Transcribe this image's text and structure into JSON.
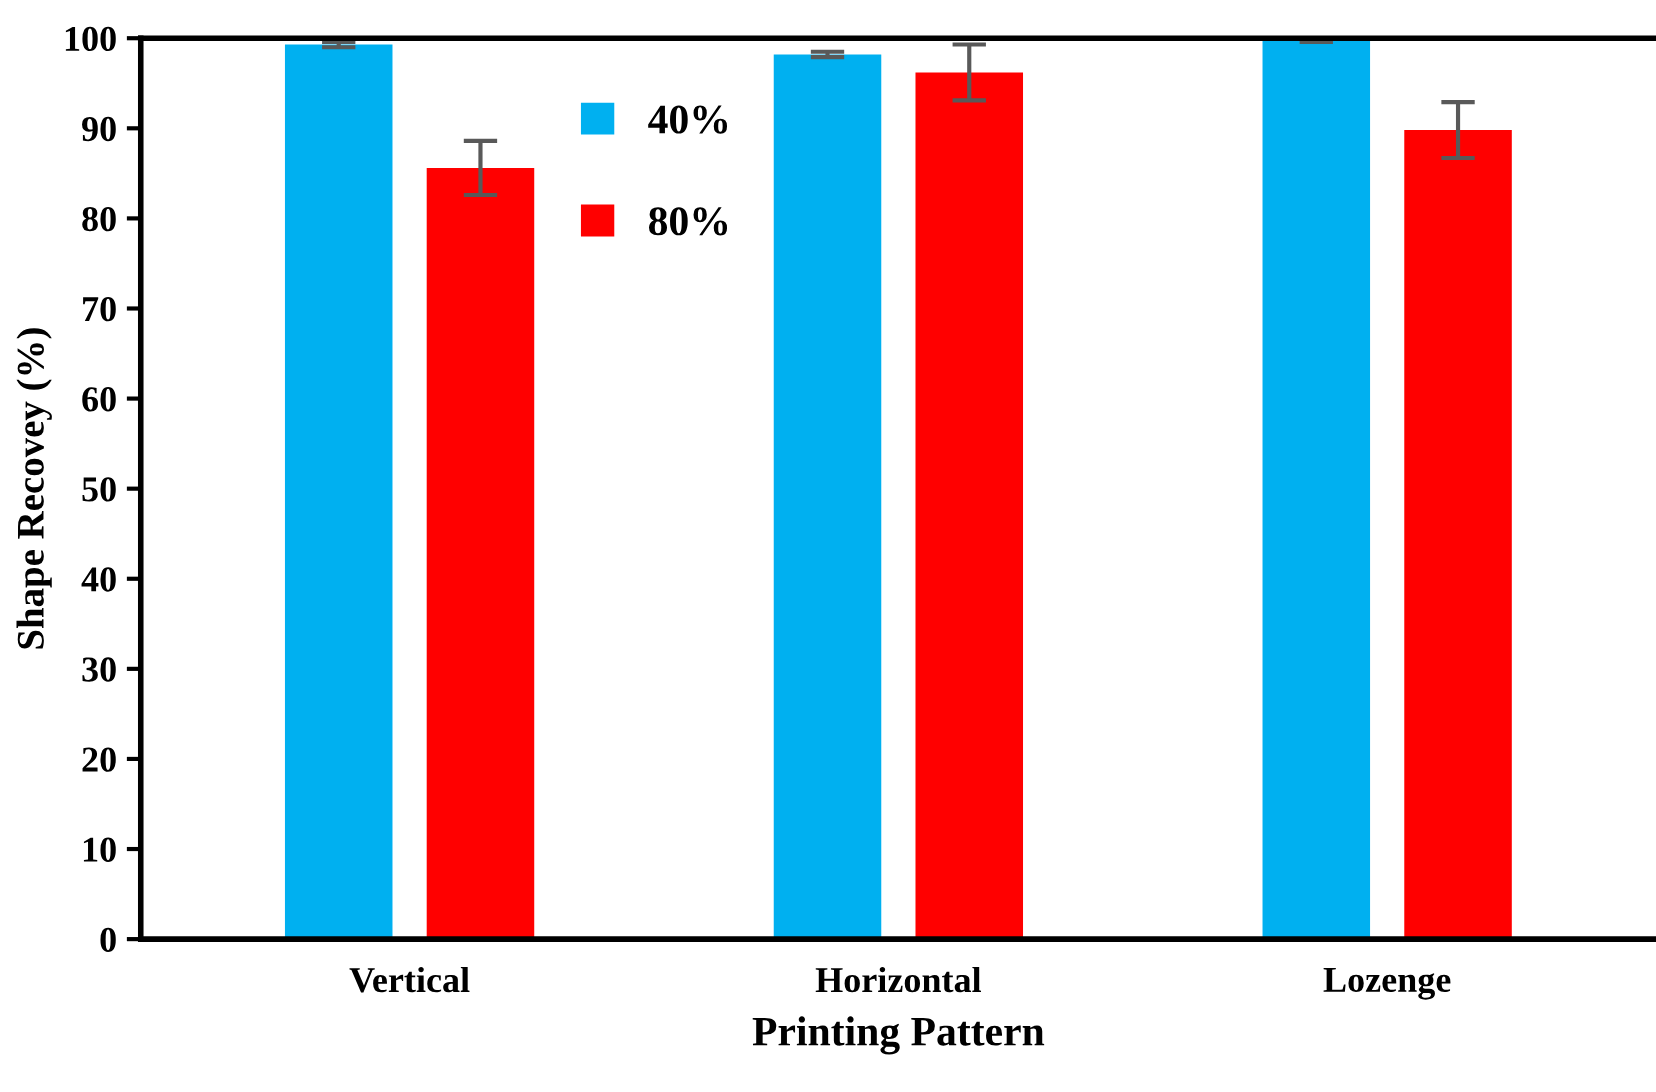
{
  "chart_data": {
    "type": "bar",
    "xlabel": "Printing Pattern",
    "ylabel": "Shape Recovey (%)",
    "categories": [
      "Vertical",
      "Horizontal",
      "Lozenge"
    ],
    "series": [
      {
        "name": "40%",
        "color": "#00b0f0",
        "values": [
          99.3,
          98.2,
          99.9
        ],
        "errors": [
          0.3,
          0.3,
          0.3
        ]
      },
      {
        "name": "80%",
        "color": "#ff0000",
        "values": [
          85.6,
          96.2,
          89.8
        ],
        "errors": [
          3.0,
          3.1,
          3.1
        ]
      }
    ],
    "ylim": [
      0,
      100
    ],
    "yticks": [
      0,
      10,
      20,
      30,
      40,
      50,
      60,
      70,
      80,
      90,
      100
    ],
    "grid": false,
    "legend": "top center"
  }
}
